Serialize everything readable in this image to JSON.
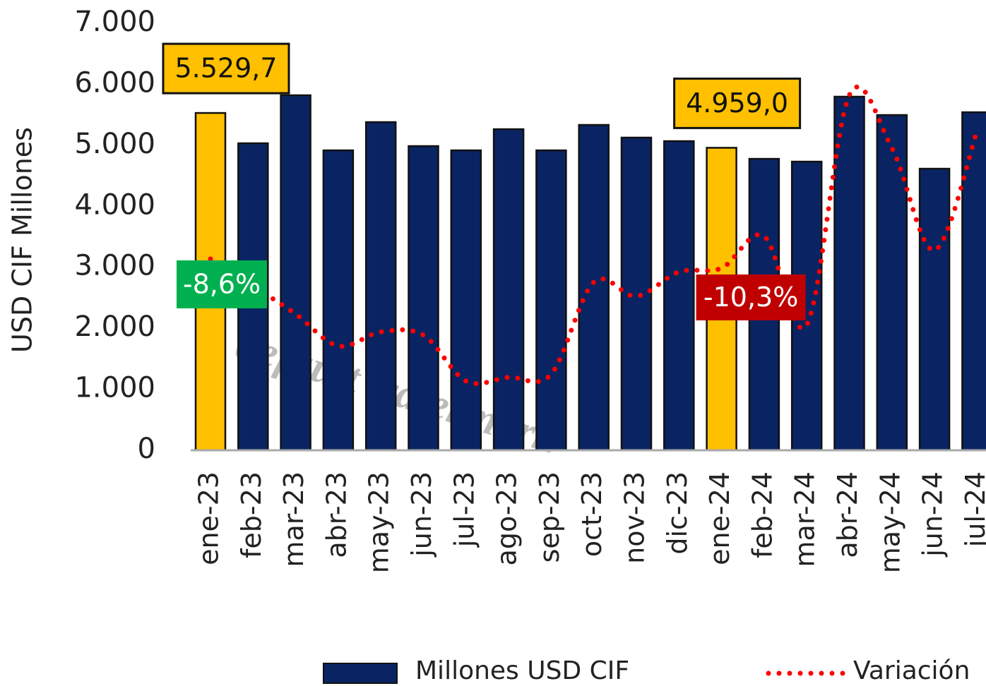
{
  "chart_data": {
    "type": "bar",
    "y_label": "USD CIF Millones",
    "watermark": "default watermark",
    "categories": [
      "ene-23",
      "feb-23",
      "mar-23",
      "abr-23",
      "may-23",
      "jun-23",
      "jul-23",
      "ago-23",
      "sep-23",
      "oct-23",
      "nov-23",
      "dic-23",
      "ene-24",
      "feb-24",
      "mar-24",
      "abr-24",
      "may-24",
      "jun-24",
      "jul-24"
    ],
    "ylim": [
      0,
      7000
    ],
    "yticks": [
      0,
      {
        "value": 1000,
        "label": "1.000"
      },
      {
        "value": 2000,
        "label": "2.000"
      },
      {
        "value": 3000,
        "label": "3.000"
      },
      {
        "value": 4000,
        "label": "4.000"
      },
      {
        "value": 5000,
        "label": "5.000"
      },
      {
        "value": 6000,
        "label": "6.000"
      },
      {
        "value": 7000,
        "label": "7.000"
      }
    ],
    "y2lim": [
      -44,
      35
    ],
    "series": [
      {
        "name": "Millones USD CIF",
        "type": "bar",
        "color": "#0a2463",
        "colors": [
          "#ffc000",
          "#0a2463",
          "#0a2463",
          "#0a2463",
          "#0a2463",
          "#0a2463",
          "#0a2463",
          "#0a2463",
          "#0a2463",
          "#0a2463",
          "#0a2463",
          "#0a2463",
          "#ffc000",
          "#0a2463",
          "#0a2463",
          "#0a2463",
          "#0a2463",
          "#0a2463",
          "#0a2463"
        ],
        "values": [
          5529.7,
          5033,
          5820,
          4917,
          5380,
          4987,
          4917,
          5264,
          4917,
          5334,
          5126,
          5068,
          4959.0,
          4778,
          4732,
          5797,
          5496,
          4616,
          5542
        ],
        "value_labels": [
          "5.529,7",
          null,
          null,
          null,
          null,
          null,
          null,
          null,
          null,
          null,
          null,
          null,
          "4.959,0",
          null,
          null,
          null,
          null,
          null,
          null
        ]
      },
      {
        "name": "Variación",
        "type": "line",
        "axis": "y2",
        "color": "#ff0000",
        "values": [
          -8.6,
          -13.6,
          -18.8,
          -24.7,
          -22.1,
          -22.7,
          -31.2,
          -30.5,
          -29.9,
          -12.9,
          -15.5,
          -11.0,
          -10.3,
          -4.4,
          -20.8,
          21.7,
          11.9,
          -7.0,
          15.1
        ],
        "value_labels": [
          "-8,6%",
          null,
          null,
          null,
          null,
          null,
          null,
          null,
          null,
          null,
          null,
          null,
          "-10,3%",
          null,
          null,
          null,
          null,
          null,
          null
        ]
      }
    ]
  }
}
